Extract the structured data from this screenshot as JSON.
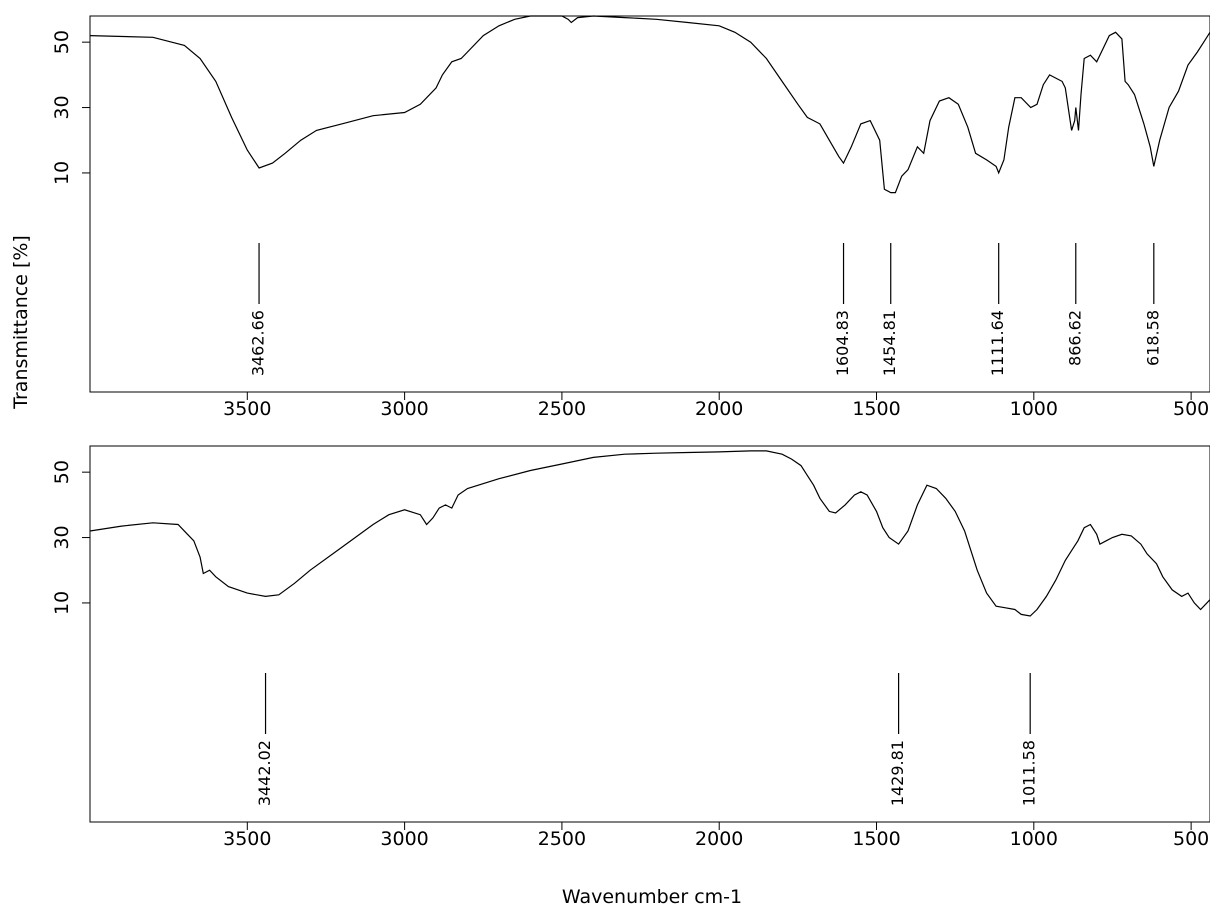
{
  "chart_data": [
    {
      "type": "line",
      "ylabel": "Transmittance [%]",
      "xlabel": "",
      "xlim": [
        4000,
        440
      ],
      "ylim": [
        -57,
        58
      ],
      "x_ticks": [
        3500,
        3000,
        2500,
        2000,
        1500,
        1000,
        500
      ],
      "y_ticks": [
        10,
        30,
        50
      ],
      "grid": false,
      "series": [
        {
          "points": [
            [
              4000,
              52
            ],
            [
              3800,
              51.5
            ],
            [
              3700,
              49
            ],
            [
              3650,
              45
            ],
            [
              3600,
              38
            ],
            [
              3550,
              27
            ],
            [
              3500,
              17
            ],
            [
              3462.66,
              11.5
            ],
            [
              3420,
              13
            ],
            [
              3380,
              16
            ],
            [
              3330,
              20
            ],
            [
              3280,
              23
            ],
            [
              3200,
              25
            ],
            [
              3100,
              27.5
            ],
            [
              3000,
              28.5
            ],
            [
              2950,
              31
            ],
            [
              2900,
              36
            ],
            [
              2880,
              40
            ],
            [
              2850,
              44
            ],
            [
              2820,
              45
            ],
            [
              2800,
              47
            ],
            [
              2750,
              52
            ],
            [
              2700,
              55
            ],
            [
              2650,
              57
            ],
            [
              2600,
              58
            ],
            [
              2500,
              58
            ],
            [
              2480,
              57
            ],
            [
              2470,
              56
            ],
            [
              2450,
              57.5
            ],
            [
              2400,
              58
            ],
            [
              2300,
              57.5
            ],
            [
              2200,
              57
            ],
            [
              2100,
              56
            ],
            [
              2000,
              55
            ],
            [
              1950,
              53
            ],
            [
              1900,
              50
            ],
            [
              1850,
              45
            ],
            [
              1800,
              38
            ],
            [
              1750,
              31
            ],
            [
              1720,
              27
            ],
            [
              1700,
              26
            ],
            [
              1680,
              25
            ],
            [
              1650,
              20
            ],
            [
              1620,
              15
            ],
            [
              1604.83,
              13
            ],
            [
              1580,
              18
            ],
            [
              1550,
              25
            ],
            [
              1520,
              26
            ],
            [
              1490,
              20
            ],
            [
              1475,
              5
            ],
            [
              1454.81,
              4
            ],
            [
              1440,
              4
            ],
            [
              1420,
              9
            ],
            [
              1400,
              11
            ],
            [
              1370,
              18
            ],
            [
              1350,
              16
            ],
            [
              1330,
              26
            ],
            [
              1300,
              32
            ],
            [
              1270,
              33
            ],
            [
              1240,
              31
            ],
            [
              1210,
              24
            ],
            [
              1185,
              16
            ],
            [
              1150,
              14
            ],
            [
              1120,
              12
            ],
            [
              1111.64,
              10
            ],
            [
              1095,
              14
            ],
            [
              1080,
              24
            ],
            [
              1060,
              33
            ],
            [
              1040,
              33
            ],
            [
              1010,
              30
            ],
            [
              990,
              31
            ],
            [
              970,
              37
            ],
            [
              950,
              40
            ],
            [
              930,
              39
            ],
            [
              910,
              38
            ],
            [
              900,
              36
            ],
            [
              880,
              23
            ],
            [
              870,
              26
            ],
            [
              866.62,
              30
            ],
            [
              858,
              23
            ],
            [
              850,
              34
            ],
            [
              840,
              45
            ],
            [
              820,
              46
            ],
            [
              800,
              44
            ],
            [
              780,
              48
            ],
            [
              760,
              52
            ],
            [
              740,
              53
            ],
            [
              720,
              51
            ],
            [
              710,
              38
            ],
            [
              700,
              37
            ],
            [
              680,
              34
            ],
            [
              650,
              25
            ],
            [
              630,
              18
            ],
            [
              618.58,
              12
            ],
            [
              600,
              20
            ],
            [
              570,
              30
            ],
            [
              540,
              35
            ],
            [
              510,
              43
            ],
            [
              480,
              47
            ],
            [
              460,
              50
            ],
            [
              440,
              53
            ]
          ]
        }
      ],
      "annotations": [
        {
          "x": 3462.66,
          "label": "3462.66"
        },
        {
          "x": 1604.83,
          "label": "1604.83"
        },
        {
          "x": 1454.81,
          "label": "1454.81"
        },
        {
          "x": 1111.64,
          "label": "1111.64"
        },
        {
          "x": 866.62,
          "label": "866.62"
        },
        {
          "x": 618.58,
          "label": "618.58"
        }
      ]
    },
    {
      "type": "line",
      "ylabel": "",
      "xlabel": "Wavenumber cm-1",
      "xlim": [
        4000,
        440
      ],
      "ylim": [
        -57,
        58
      ],
      "x_ticks": [
        3500,
        3000,
        2500,
        2000,
        1500,
        1000,
        500
      ],
      "y_ticks": [
        10,
        30,
        50
      ],
      "grid": false,
      "series": [
        {
          "points": [
            [
              4000,
              32
            ],
            [
              3900,
              33.5
            ],
            [
              3800,
              34.5
            ],
            [
              3720,
              34
            ],
            [
              3690,
              31
            ],
            [
              3670,
              29
            ],
            [
              3650,
              24
            ],
            [
              3640,
              19
            ],
            [
              3620,
              20
            ],
            [
              3600,
              18
            ],
            [
              3560,
              15
            ],
            [
              3500,
              13
            ],
            [
              3442.02,
              12
            ],
            [
              3400,
              12.5
            ],
            [
              3350,
              16
            ],
            [
              3300,
              20
            ],
            [
              3200,
              27
            ],
            [
              3100,
              34
            ],
            [
              3050,
              37
            ],
            [
              3000,
              38.5
            ],
            [
              2950,
              37
            ],
            [
              2930,
              34
            ],
            [
              2910,
              36
            ],
            [
              2890,
              39
            ],
            [
              2870,
              40
            ],
            [
              2850,
              39
            ],
            [
              2830,
              43
            ],
            [
              2800,
              45
            ],
            [
              2700,
              48
            ],
            [
              2600,
              50.5
            ],
            [
              2500,
              52.5
            ],
            [
              2400,
              54.5
            ],
            [
              2300,
              55.5
            ],
            [
              2200,
              55.8
            ],
            [
              2100,
              56
            ],
            [
              2000,
              56.2
            ],
            [
              1900,
              56.5
            ],
            [
              1850,
              56.5
            ],
            [
              1800,
              55.5
            ],
            [
              1770,
              54
            ],
            [
              1740,
              52
            ],
            [
              1720,
              49
            ],
            [
              1700,
              46
            ],
            [
              1680,
              42
            ],
            [
              1650,
              38
            ],
            [
              1630,
              37.5
            ],
            [
              1600,
              40
            ],
            [
              1570,
              43
            ],
            [
              1550,
              44
            ],
            [
              1530,
              43
            ],
            [
              1500,
              38
            ],
            [
              1480,
              33
            ],
            [
              1460,
              30
            ],
            [
              1429.81,
              28
            ],
            [
              1400,
              32
            ],
            [
              1370,
              40
            ],
            [
              1340,
              46
            ],
            [
              1310,
              45
            ],
            [
              1280,
              42
            ],
            [
              1250,
              38
            ],
            [
              1220,
              32
            ],
            [
              1200,
              26
            ],
            [
              1180,
              20
            ],
            [
              1150,
              13
            ],
            [
              1120,
              9
            ],
            [
              1090,
              8.5
            ],
            [
              1060,
              8
            ],
            [
              1040,
              6.5
            ],
            [
              1011.58,
              6
            ],
            [
              990,
              8
            ],
            [
              960,
              12
            ],
            [
              930,
              17
            ],
            [
              900,
              23
            ],
            [
              880,
              26
            ],
            [
              860,
              29
            ],
            [
              840,
              33
            ],
            [
              820,
              34
            ],
            [
              800,
              31
            ],
            [
              790,
              28
            ],
            [
              770,
              29
            ],
            [
              750,
              30
            ],
            [
              720,
              31
            ],
            [
              690,
              30.5
            ],
            [
              660,
              28
            ],
            [
              640,
              25
            ],
            [
              610,
              22
            ],
            [
              590,
              18
            ],
            [
              560,
              14
            ],
            [
              530,
              12
            ],
            [
              510,
              13
            ],
            [
              490,
              10
            ],
            [
              470,
              8
            ],
            [
              450,
              10
            ],
            [
              440,
              11
            ]
          ]
        }
      ],
      "annotations": [
        {
          "x": 3442.02,
          "label": "3442.02"
        },
        {
          "x": 1429.81,
          "label": "1429.81"
        },
        {
          "x": 1011.58,
          "label": "1011.58"
        }
      ]
    }
  ]
}
